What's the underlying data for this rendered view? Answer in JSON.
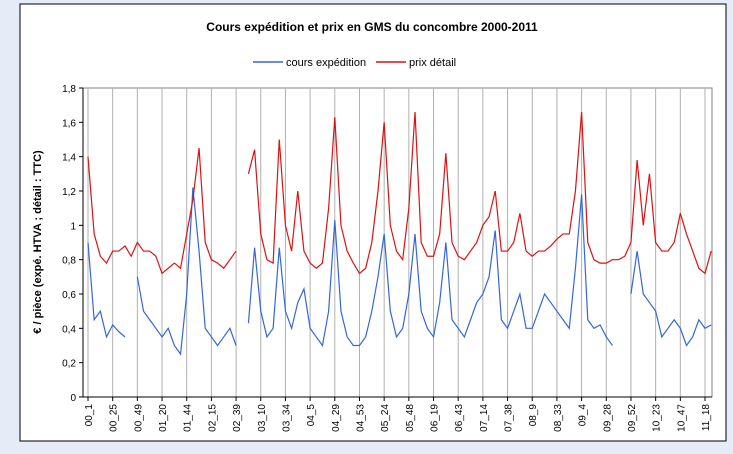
{
  "chart_data": {
    "type": "line",
    "title": "Cours expédition et prix en GMS du concombre 2000-2011",
    "y_label": "€ / pièce (expé. HTVA ; détail : TTC)",
    "categories": [
      "00_1",
      null,
      null,
      null,
      "00_25",
      null,
      null,
      null,
      "00_49",
      null,
      null,
      null,
      "01_20",
      null,
      null,
      null,
      "01_44",
      null,
      null,
      null,
      "02_15",
      null,
      null,
      null,
      "02_39",
      null,
      null,
      null,
      "03_10",
      null,
      null,
      null,
      "03_34",
      null,
      null,
      null,
      "04_5",
      null,
      null,
      null,
      "04_29",
      null,
      null,
      null,
      "04_53",
      null,
      null,
      null,
      "05_24",
      null,
      null,
      null,
      "05_48",
      null,
      null,
      null,
      "06_19",
      null,
      null,
      null,
      "06_43",
      null,
      null,
      null,
      "07_14",
      null,
      null,
      null,
      "07_38",
      null,
      null,
      null,
      "08_9",
      null,
      null,
      null,
      "08_33",
      null,
      null,
      null,
      "09_4",
      null,
      null,
      null,
      "09_28",
      null,
      null,
      null,
      "09_52",
      null,
      null,
      null,
      "10_23",
      null,
      null,
      null,
      "10_47",
      null,
      null,
      null,
      "11_18",
      null
    ],
    "series": [
      {
        "name": "cours expédition",
        "color": "#3366dd",
        "values": [
          0.9,
          0.45,
          0.5,
          0.35,
          0.42,
          0.38,
          0.35,
          null,
          0.7,
          0.5,
          0.45,
          0.4,
          0.35,
          0.4,
          0.3,
          0.25,
          0.6,
          1.22,
          0.85,
          0.4,
          0.35,
          0.3,
          0.35,
          0.4,
          0.3,
          null,
          0.43,
          0.87,
          0.5,
          0.35,
          0.4,
          0.87,
          0.5,
          0.4,
          0.55,
          0.63,
          0.4,
          0.35,
          0.3,
          0.5,
          1.03,
          0.5,
          0.35,
          0.3,
          0.3,
          0.35,
          0.5,
          0.7,
          0.95,
          0.5,
          0.35,
          0.4,
          0.6,
          0.95,
          0.5,
          0.4,
          0.35,
          0.55,
          0.9,
          0.45,
          0.4,
          0.35,
          0.45,
          0.55,
          0.6,
          0.7,
          0.97,
          0.45,
          0.4,
          0.5,
          0.6,
          0.4,
          0.4,
          0.5,
          0.6,
          0.55,
          0.5,
          0.45,
          0.4,
          0.75,
          1.18,
          0.45,
          0.4,
          0.42,
          0.35,
          0.3,
          null,
          null,
          0.6,
          0.85,
          0.6,
          0.55,
          0.5,
          0.35,
          0.4,
          0.45,
          0.4,
          0.3,
          0.35,
          0.45,
          0.4,
          0.42
        ]
      },
      {
        "name": "prix détail",
        "color": "#dd1111",
        "values": [
          1.4,
          0.95,
          0.82,
          0.78,
          0.85,
          0.85,
          0.88,
          0.82,
          0.9,
          0.85,
          0.85,
          0.82,
          0.72,
          0.75,
          0.78,
          0.75,
          0.95,
          1.15,
          1.45,
          0.9,
          0.8,
          0.78,
          0.75,
          0.8,
          0.85,
          null,
          1.3,
          1.44,
          0.95,
          0.8,
          0.78,
          1.5,
          1.0,
          0.85,
          1.2,
          0.85,
          0.78,
          0.75,
          0.78,
          1.1,
          1.63,
          1.0,
          0.85,
          0.78,
          0.72,
          0.75,
          0.9,
          1.2,
          1.6,
          1.0,
          0.85,
          0.8,
          1.1,
          1.66,
          0.9,
          0.82,
          0.82,
          0.95,
          1.42,
          0.9,
          0.82,
          0.8,
          0.85,
          0.9,
          1.0,
          1.05,
          1.2,
          0.85,
          0.85,
          0.9,
          1.07,
          0.85,
          0.82,
          0.85,
          0.85,
          0.88,
          0.92,
          0.95,
          0.95,
          1.2,
          1.66,
          0.9,
          0.8,
          0.78,
          0.78,
          0.8,
          0.8,
          0.82,
          0.9,
          1.38,
          1.0,
          1.3,
          0.9,
          0.85,
          0.85,
          0.9,
          1.07,
          0.95,
          0.85,
          0.75,
          0.72,
          0.85
        ]
      }
    ],
    "ylim": [
      0,
      1.8
    ],
    "yticks": [
      0,
      {
        "value": 0.2,
        "label": "0,2"
      },
      {
        "value": 0.4,
        "label": "0,4"
      },
      {
        "value": 0.6,
        "label": "0,6"
      },
      {
        "value": 0.8,
        "label": "0,8"
      },
      1,
      {
        "value": 1.2,
        "label": "1,2"
      },
      {
        "value": 1.4,
        "label": "1,4"
      },
      {
        "value": 1.6,
        "label": "1,6"
      },
      {
        "value": 1.8,
        "label": "1,8"
      }
    ],
    "grid": "x",
    "legend": "top"
  }
}
